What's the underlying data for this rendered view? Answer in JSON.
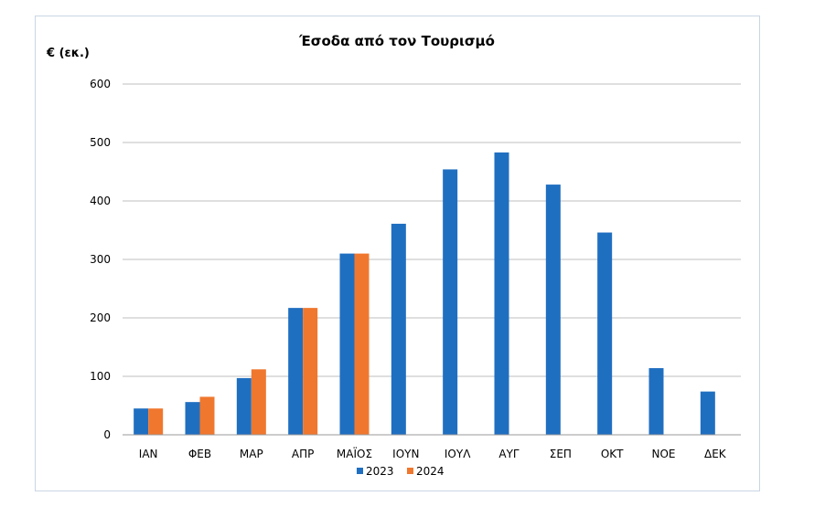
{
  "chart_data": {
    "type": "bar",
    "title": "Έσοδα από τον Τουρισμό",
    "ylabel": "€ (εκ.)",
    "xlabel": "",
    "categories": [
      "ΙΑΝ",
      "ΦΕΒ",
      "ΜΑΡ",
      "ΑΠΡ",
      "ΜΑΪΟΣ",
      "ΙΟΥΝ",
      "ΙΟΥΛ",
      "ΑΥΓ",
      "ΣΕΠ",
      "ΟΚΤ",
      "ΝΟΕ",
      "ΔΕΚ"
    ],
    "series": [
      {
        "name": "2023",
        "color": "#1f6fc1",
        "values": [
          45,
          56,
          97,
          217,
          310,
          361,
          454,
          483,
          428,
          346,
          114,
          74
        ]
      },
      {
        "name": "2024",
        "color": "#f0772e",
        "values": [
          45,
          65,
          112,
          217,
          310,
          null,
          null,
          null,
          null,
          null,
          null,
          null
        ]
      }
    ],
    "ylim": [
      0,
      600
    ],
    "yticks": [
      0,
      100,
      200,
      300,
      400,
      500,
      600
    ],
    "grid": true,
    "legend_position": "bottom"
  }
}
